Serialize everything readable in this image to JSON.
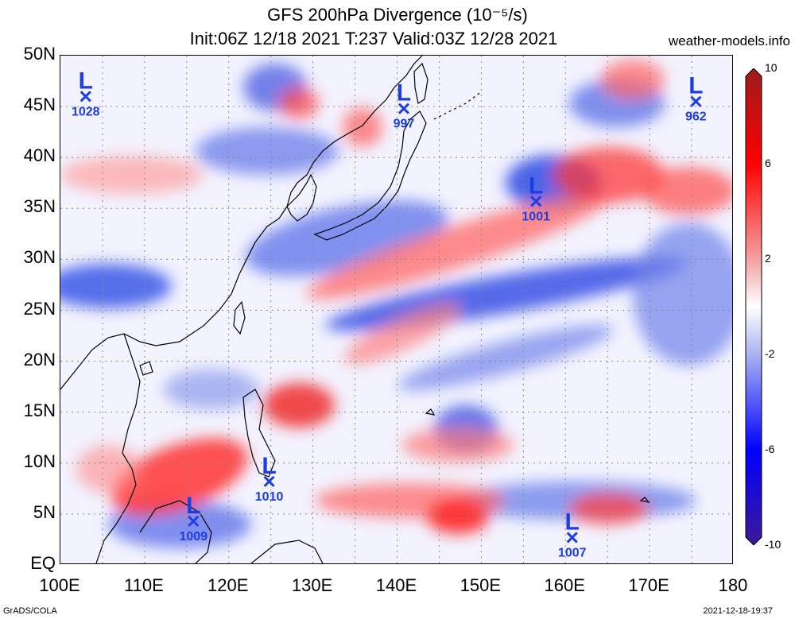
{
  "header": {
    "title_line1": "GFS 200hPa Divergence (10⁻⁵/s)",
    "title_line2": "Init:06Z 12/18 2021 T:237 Valid:03Z 12/28 2021",
    "site": "weather-models.info"
  },
  "map": {
    "lon_range": [
      100,
      180
    ],
    "lat_range": [
      0,
      50
    ],
    "y_ticks": [
      "50N",
      "45N",
      "40N",
      "35N",
      "30N",
      "25N",
      "20N",
      "15N",
      "10N",
      "5N",
      "EQ"
    ],
    "x_ticks": [
      "100E",
      "110E",
      "120E",
      "130E",
      "140E",
      "150E",
      "160E",
      "170E",
      "180"
    ],
    "grid": "dotted",
    "pressure_centers": [
      {
        "type": "L",
        "label": "1028",
        "lon": 103,
        "lat": 46
      },
      {
        "type": "L",
        "label": "997",
        "lon": 140.8,
        "lat": 44.8
      },
      {
        "type": "L",
        "label": "962",
        "lon": 175.5,
        "lat": 45.5
      },
      {
        "type": "L",
        "label": "1001",
        "lon": 156.5,
        "lat": 35.7
      },
      {
        "type": "L",
        "label": "1010",
        "lon": 124.8,
        "lat": 8.2
      },
      {
        "type": "L",
        "label": "1009",
        "lon": 115.8,
        "lat": 4.3
      },
      {
        "type": "L",
        "label": "1007",
        "lon": 160.8,
        "lat": 2.7
      }
    ]
  },
  "colorbar": {
    "labels": [
      "10",
      "6",
      "2",
      "-2",
      "-6",
      "-10"
    ],
    "colors": [
      "#9b1c1c",
      "#ff0000",
      "#f4a0a0",
      "#ffffff",
      "#a9b3f0",
      "#0000ff",
      "#3d1a96"
    ]
  },
  "footer": {
    "left": "GrADS/COLA",
    "right": "2021-12-18-19:37"
  }
}
